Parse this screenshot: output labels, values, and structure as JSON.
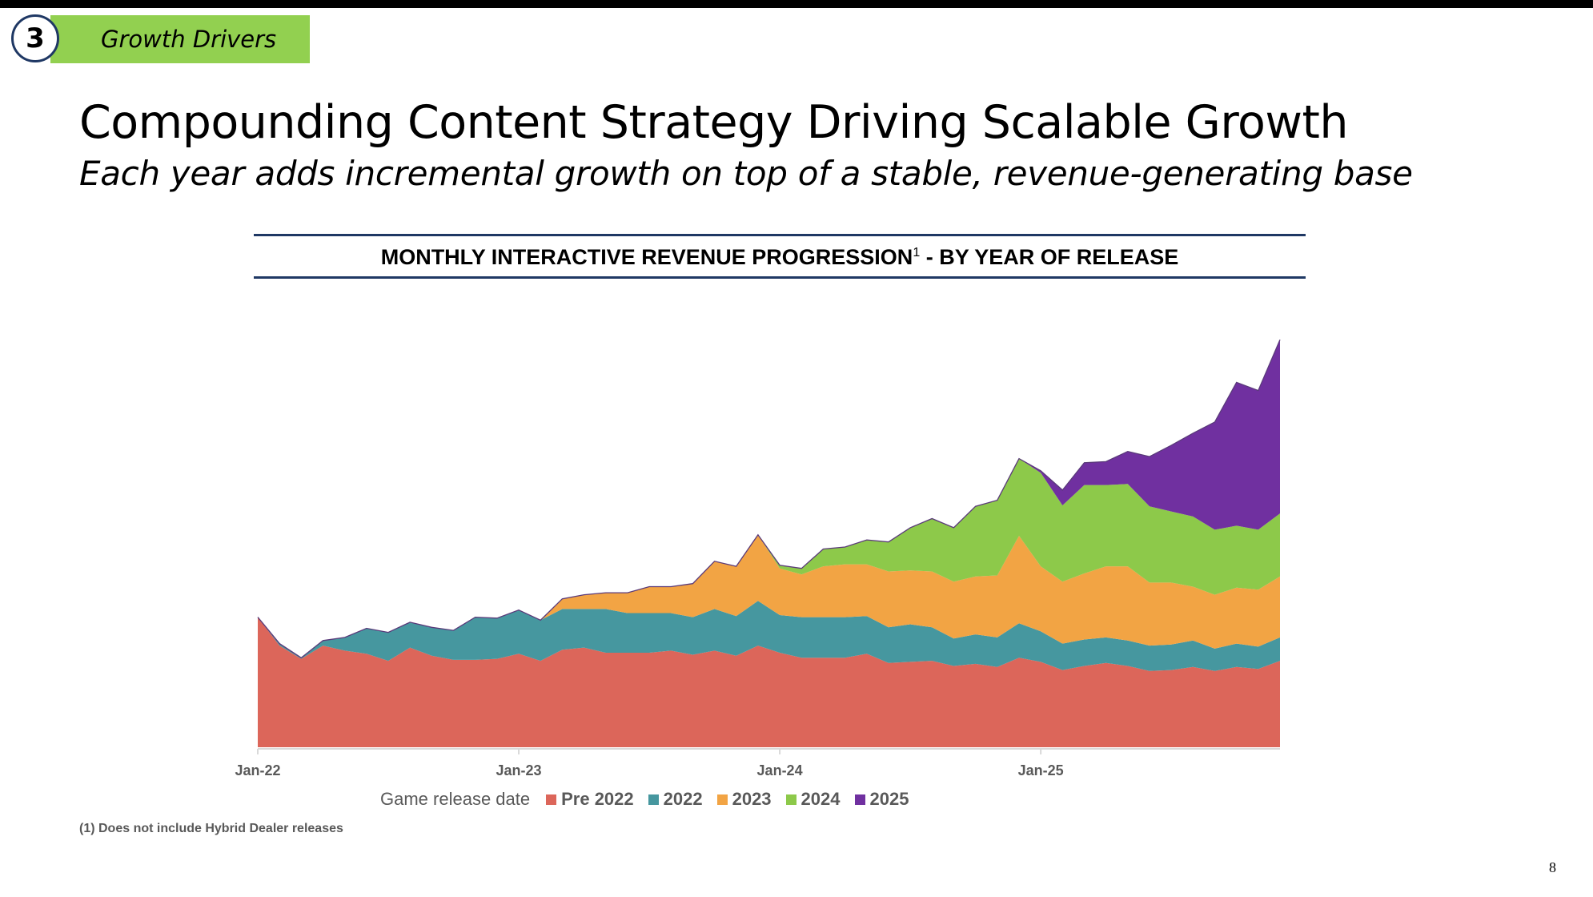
{
  "section": {
    "number": "3",
    "label": "Growth Drivers",
    "color": "#92D050"
  },
  "header": {
    "title": "Compounding Content Strategy Driving Scalable Growth",
    "subtitle": "Each year adds incremental growth on top of a stable, revenue-generating base"
  },
  "chart_title": {
    "text": "MONTHLY INTERACTIVE REVENUE PROGRESSION",
    "superscript": "1",
    "suffix": " - BY YEAR OF RELEASE"
  },
  "chart_data": {
    "type": "area",
    "stacked": true,
    "x_start": "Jan-22",
    "x_end": "Dec-25",
    "x_interval": "month",
    "x_tick_labels": [
      "Jan-22",
      "Jan-23",
      "Jan-24",
      "Jan-25"
    ],
    "y_axis_shown": false,
    "y_units": "relative (no axis printed)",
    "grid": false,
    "legend_title": "Game release date",
    "legend_position": "bottom",
    "series": [
      {
        "name": "Pre 2022",
        "color": "#DC665A",
        "values": [
          128,
          100,
          87,
          100,
          95,
          92,
          85,
          98,
          90,
          86,
          86,
          87,
          92,
          85,
          96,
          98,
          93,
          93,
          93,
          95,
          91,
          95,
          90,
          100,
          93,
          88,
          88,
          88,
          92,
          83,
          84,
          85,
          80,
          82,
          79,
          88,
          84,
          76,
          80,
          83,
          80,
          75,
          76,
          79,
          75,
          79,
          77,
          85
        ]
      },
      {
        "name": "2022",
        "color": "#46979F",
        "values": [
          0,
          2,
          1,
          5,
          13,
          25,
          28,
          25,
          28,
          29,
          42,
          40,
          43,
          40,
          40,
          38,
          43,
          39,
          39,
          37,
          37,
          41,
          39,
          44,
          37,
          40,
          40,
          40,
          37,
          35,
          37,
          33,
          27,
          29,
          29,
          34,
          30,
          26,
          26,
          25,
          25,
          25,
          25,
          26,
          22,
          23,
          22,
          23
        ]
      },
      {
        "name": "2023",
        "color": "#F2A444",
        "values": [
          0,
          0,
          0,
          0,
          0,
          0,
          0,
          0,
          0,
          0,
          0,
          0,
          0,
          0,
          10,
          14,
          16,
          20,
          26,
          26,
          33,
          47,
          49,
          65,
          46,
          42,
          50,
          52,
          51,
          55,
          53,
          55,
          56,
          57,
          61,
          86,
          64,
          61,
          65,
          70,
          73,
          62,
          61,
          53,
          53,
          55,
          56,
          60
        ]
      },
      {
        "name": "2024",
        "color": "#8DC94A",
        "values": [
          0,
          0,
          0,
          0,
          0,
          0,
          0,
          0,
          0,
          0,
          0,
          0,
          0,
          0,
          0,
          0,
          0,
          0,
          0,
          0,
          0,
          0,
          0,
          0,
          3,
          6,
          17,
          17,
          24,
          29,
          42,
          52,
          53,
          69,
          74,
          76,
          92,
          75,
          87,
          80,
          81,
          75,
          70,
          69,
          64,
          61,
          59,
          62
        ]
      },
      {
        "name": "2025",
        "color": "#7030A0",
        "values": [
          0,
          0,
          0,
          0,
          0,
          0,
          0,
          0,
          0,
          0,
          0,
          0,
          0,
          0,
          0,
          0,
          0,
          0,
          0,
          0,
          0,
          0,
          0,
          0,
          0,
          0,
          0,
          0,
          0,
          0,
          0,
          0,
          0,
          0,
          0,
          0,
          2,
          15,
          22,
          23,
          32,
          49,
          65,
          82,
          106,
          141,
          137,
          171
        ]
      }
    ]
  },
  "footnote": "(1) Does not include Hybrid Dealer releases",
  "page_number": "8"
}
